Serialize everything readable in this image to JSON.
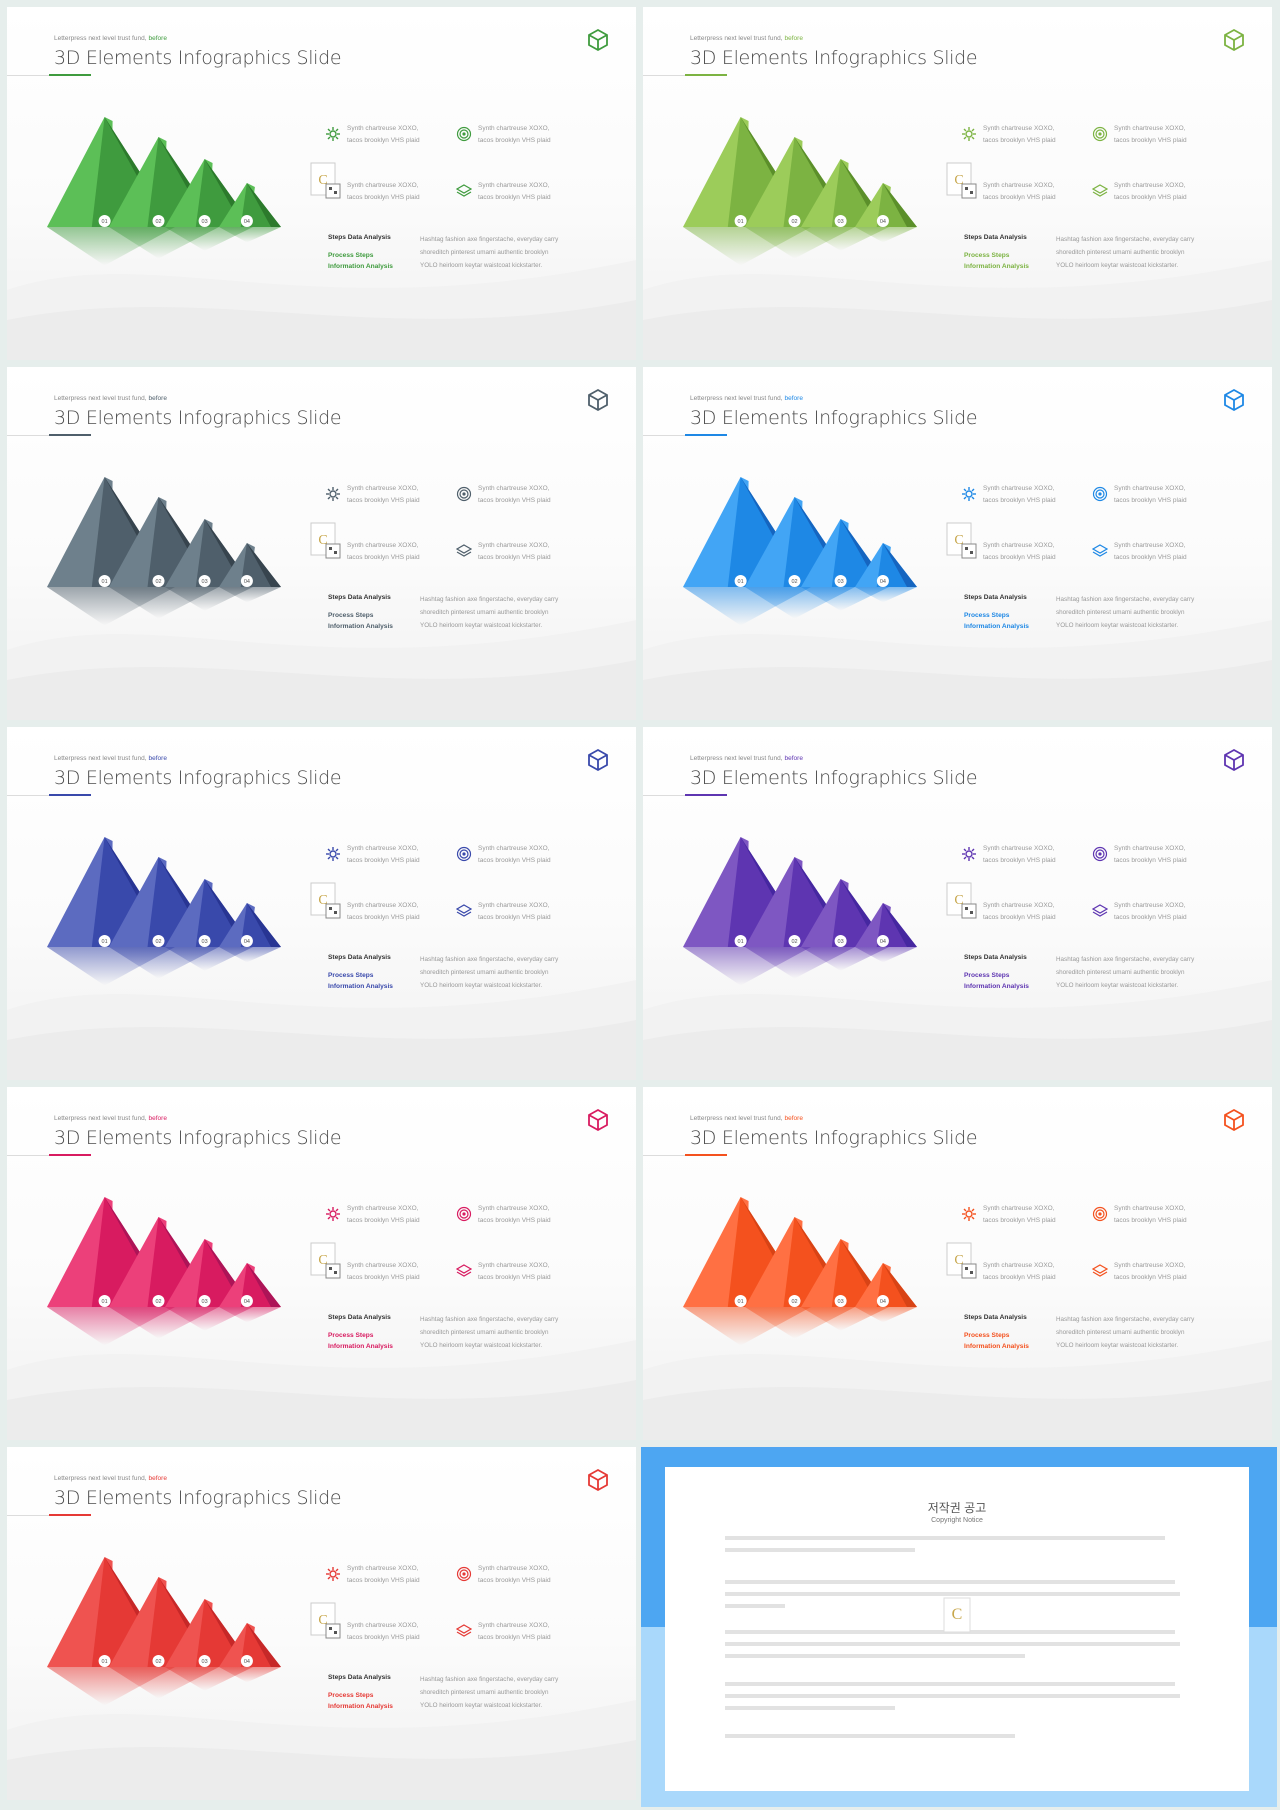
{
  "slides": [
    {
      "kicker": "Letterpress next level trust fund,",
      "kicker_accent": "before",
      "title": "3D Elements Infographics Slide",
      "accent": "#3f9b3e",
      "light": "#5cbf57",
      "dark": "#2c7a2c",
      "cube_icon": "cube-outline-icon",
      "peaks": [
        {
          "num": "01"
        },
        {
          "num": "02"
        },
        {
          "num": "03"
        },
        {
          "num": "04"
        }
      ],
      "items": [
        {
          "icon": "gear-icon",
          "line1": "Synth chartreuse XOXO,",
          "line2": "tacos brooklyn VHS plaid"
        },
        {
          "icon": "target-icon",
          "line1": "Synth chartreuse XOXO,",
          "line2": "tacos brooklyn VHS plaid"
        },
        {
          "icon": "qr-code-icon",
          "line1": "Synth chartreuse XOXO,",
          "line2": "tacos brooklyn VHS plaid"
        },
        {
          "icon": "layers-icon",
          "line1": "Synth chartreuse XOXO,",
          "line2": "tacos brooklyn VHS plaid"
        }
      ],
      "steps": {
        "a": "Steps Data Analysis",
        "b": "Process Steps",
        "c": "Information Analysis"
      },
      "desc": [
        "Hashtag fashion axe fingerstache, everyday carry",
        "shoreditch pinterest umami authentic brooklyn",
        "YOLO heirloom keytar waistcoat kickstarter."
      ]
    },
    {
      "kicker": "Letterpress next level trust fund,",
      "kicker_accent": "before",
      "title": "3D Elements Infographics Slide",
      "accent": "#7cb342",
      "light": "#9ccc5a",
      "dark": "#5b8f2a",
      "cube_icon": "cube-outline-icon",
      "peaks": [
        {
          "num": "01"
        },
        {
          "num": "02"
        },
        {
          "num": "03"
        },
        {
          "num": "04"
        }
      ],
      "items": [
        {
          "icon": "gear-icon",
          "line1": "Synth chartreuse XOXO,",
          "line2": "tacos brooklyn VHS plaid"
        },
        {
          "icon": "target-icon",
          "line1": "Synth chartreuse XOXO,",
          "line2": "tacos brooklyn VHS plaid"
        },
        {
          "icon": "qr-code-icon",
          "line1": "Synth chartreuse XOXO,",
          "line2": "tacos brooklyn VHS plaid"
        },
        {
          "icon": "layers-icon",
          "line1": "Synth chartreuse XOXO,",
          "line2": "tacos brooklyn VHS plaid"
        }
      ],
      "steps": {
        "a": "Steps Data Analysis",
        "b": "Process Steps",
        "c": "Information Analysis"
      },
      "desc": [
        "Hashtag fashion axe fingerstache, everyday carry",
        "shoreditch pinterest umami authentic brooklyn",
        "YOLO heirloom keytar waistcoat kickstarter."
      ]
    },
    {
      "kicker": "Letterpress next level trust fund,",
      "kicker_accent": "before",
      "title": "3D Elements Infographics Slide",
      "accent": "#4f5f6b",
      "light": "#6e808c",
      "dark": "#37444e",
      "cube_icon": "cube-outline-icon",
      "peaks": [
        {
          "num": "01"
        },
        {
          "num": "02"
        },
        {
          "num": "03"
        },
        {
          "num": "04"
        }
      ],
      "items": [
        {
          "icon": "gear-icon",
          "line1": "Synth chartreuse XOXO,",
          "line2": "tacos brooklyn VHS plaid"
        },
        {
          "icon": "target-icon",
          "line1": "Synth chartreuse XOXO,",
          "line2": "tacos brooklyn VHS plaid"
        },
        {
          "icon": "qr-code-icon",
          "line1": "Synth chartreuse XOXO,",
          "line2": "tacos brooklyn VHS plaid"
        },
        {
          "icon": "layers-icon",
          "line1": "Synth chartreuse XOXO,",
          "line2": "tacos brooklyn VHS plaid"
        }
      ],
      "steps": {
        "a": "Steps Data Analysis",
        "b": "Process Steps",
        "c": "Information Analysis"
      },
      "desc": [
        "Hashtag fashion axe fingerstache, everyday carry",
        "shoreditch pinterest umami authentic brooklyn",
        "YOLO heirloom keytar waistcoat kickstarter."
      ]
    },
    {
      "kicker": "Letterpress next level trust fund,",
      "kicker_accent": "before",
      "title": "3D Elements Infographics Slide",
      "accent": "#1e88e5",
      "light": "#42a5f5",
      "dark": "#1565c0",
      "cube_icon": "cube-outline-icon",
      "peaks": [
        {
          "num": "01"
        },
        {
          "num": "02"
        },
        {
          "num": "03"
        },
        {
          "num": "04"
        }
      ],
      "items": [
        {
          "icon": "gear-icon",
          "line1": "Synth chartreuse XOXO,",
          "line2": "tacos brooklyn VHS plaid"
        },
        {
          "icon": "target-icon",
          "line1": "Synth chartreuse XOXO,",
          "line2": "tacos brooklyn VHS plaid"
        },
        {
          "icon": "qr-code-icon",
          "line1": "Synth chartreuse XOXO,",
          "line2": "tacos brooklyn VHS plaid"
        },
        {
          "icon": "layers-icon",
          "line1": "Synth chartreuse XOXO,",
          "line2": "tacos brooklyn VHS plaid"
        }
      ],
      "steps": {
        "a": "Steps Data Analysis",
        "b": "Process Steps",
        "c": "Information Analysis"
      },
      "desc": [
        "Hashtag fashion axe fingerstache, everyday carry",
        "shoreditch pinterest umami authentic brooklyn",
        "YOLO heirloom keytar waistcoat kickstarter."
      ]
    },
    {
      "kicker": "Letterpress next level trust fund,",
      "kicker_accent": "before",
      "title": "3D Elements Infographics Slide",
      "accent": "#3949ab",
      "light": "#5c6bc0",
      "dark": "#283593",
      "cube_icon": "cube-outline-icon",
      "peaks": [
        {
          "num": "01"
        },
        {
          "num": "02"
        },
        {
          "num": "03"
        },
        {
          "num": "04"
        }
      ],
      "items": [
        {
          "icon": "gear-icon",
          "line1": "Synth chartreuse XOXO,",
          "line2": "tacos brooklyn VHS plaid"
        },
        {
          "icon": "target-icon",
          "line1": "Synth chartreuse XOXO,",
          "line2": "tacos brooklyn VHS plaid"
        },
        {
          "icon": "qr-code-icon",
          "line1": "Synth chartreuse XOXO,",
          "line2": "tacos brooklyn VHS plaid"
        },
        {
          "icon": "layers-icon",
          "line1": "Synth chartreuse XOXO,",
          "line2": "tacos brooklyn VHS plaid"
        }
      ],
      "steps": {
        "a": "Steps Data Analysis",
        "b": "Process Steps",
        "c": "Information Analysis"
      },
      "desc": [
        "Hashtag fashion axe fingerstache, everyday carry",
        "shoreditch pinterest umami authentic brooklyn",
        "YOLO heirloom keytar waistcoat kickstarter."
      ]
    },
    {
      "kicker": "Letterpress next level trust fund,",
      "kicker_accent": "before",
      "title": "3D Elements Infographics Slide",
      "accent": "#5e35b1",
      "light": "#7e57c2",
      "dark": "#4527a0",
      "cube_icon": "cube-outline-icon",
      "peaks": [
        {
          "num": "01"
        },
        {
          "num": "02"
        },
        {
          "num": "03"
        },
        {
          "num": "04"
        }
      ],
      "items": [
        {
          "icon": "gear-icon",
          "line1": "Synth chartreuse XOXO,",
          "line2": "tacos brooklyn VHS plaid"
        },
        {
          "icon": "target-icon",
          "line1": "Synth chartreuse XOXO,",
          "line2": "tacos brooklyn VHS plaid"
        },
        {
          "icon": "qr-code-icon",
          "line1": "Synth chartreuse XOXO,",
          "line2": "tacos brooklyn VHS plaid"
        },
        {
          "icon": "layers-icon",
          "line1": "Synth chartreuse XOXO,",
          "line2": "tacos brooklyn VHS plaid"
        }
      ],
      "steps": {
        "a": "Steps Data Analysis",
        "b": "Process Steps",
        "c": "Information Analysis"
      },
      "desc": [
        "Hashtag fashion axe fingerstache, everyday carry",
        "shoreditch pinterest umami authentic brooklyn",
        "YOLO heirloom keytar waistcoat kickstarter."
      ]
    },
    {
      "kicker": "Letterpress next level trust fund,",
      "kicker_accent": "before",
      "title": "3D Elements Infographics Slide",
      "accent": "#d81b60",
      "light": "#ec407a",
      "dark": "#ad1457",
      "cube_icon": "cube-outline-icon",
      "peaks": [
        {
          "num": "01"
        },
        {
          "num": "02"
        },
        {
          "num": "03"
        },
        {
          "num": "04"
        }
      ],
      "items": [
        {
          "icon": "gear-icon",
          "line1": "Synth chartreuse XOXO,",
          "line2": "tacos brooklyn VHS plaid"
        },
        {
          "icon": "target-icon",
          "line1": "Synth chartreuse XOXO,",
          "line2": "tacos brooklyn VHS plaid"
        },
        {
          "icon": "qr-code-icon",
          "line1": "Synth chartreuse XOXO,",
          "line2": "tacos brooklyn VHS plaid"
        },
        {
          "icon": "layers-icon",
          "line1": "Synth chartreuse XOXO,",
          "line2": "tacos brooklyn VHS plaid"
        }
      ],
      "steps": {
        "a": "Steps Data Analysis",
        "b": "Process Steps",
        "c": "Information Analysis"
      },
      "desc": [
        "Hashtag fashion axe fingerstache, everyday carry",
        "shoreditch pinterest umami authentic brooklyn",
        "YOLO heirloom keytar waistcoat kickstarter."
      ]
    },
    {
      "kicker": "Letterpress next level trust fund,",
      "kicker_accent": "before",
      "title": "3D Elements Infographics Slide",
      "accent": "#f4511e",
      "light": "#ff7043",
      "dark": "#d84315",
      "cube_icon": "cube-outline-icon",
      "peaks": [
        {
          "num": "01"
        },
        {
          "num": "02"
        },
        {
          "num": "03"
        },
        {
          "num": "04"
        }
      ],
      "items": [
        {
          "icon": "gear-icon",
          "line1": "Synth chartreuse XOXO,",
          "line2": "tacos brooklyn VHS plaid"
        },
        {
          "icon": "target-icon",
          "line1": "Synth chartreuse XOXO,",
          "line2": "tacos brooklyn VHS plaid"
        },
        {
          "icon": "qr-code-icon",
          "line1": "Synth chartreuse XOXO,",
          "line2": "tacos brooklyn VHS plaid"
        },
        {
          "icon": "layers-icon",
          "line1": "Synth chartreuse XOXO,",
          "line2": "tacos brooklyn VHS plaid"
        }
      ],
      "steps": {
        "a": "Steps Data Analysis",
        "b": "Process Steps",
        "c": "Information Analysis"
      },
      "desc": [
        "Hashtag fashion axe fingerstache, everyday carry",
        "shoreditch pinterest umami authentic brooklyn",
        "YOLO heirloom keytar waistcoat kickstarter."
      ]
    },
    {
      "kicker": "Letterpress next level trust fund,",
      "kicker_accent": "before",
      "title": "3D Elements Infographics Slide",
      "accent": "#e53935",
      "light": "#ef5350",
      "dark": "#c62828",
      "cube_icon": "cube-outline-icon",
      "peaks": [
        {
          "num": "01"
        },
        {
          "num": "02"
        },
        {
          "num": "03"
        },
        {
          "num": "04"
        }
      ],
      "items": [
        {
          "icon": "gear-icon",
          "line1": "Synth chartreuse XOXO,",
          "line2": "tacos brooklyn VHS plaid"
        },
        {
          "icon": "target-icon",
          "line1": "Synth chartreuse XOXO,",
          "line2": "tacos brooklyn VHS plaid"
        },
        {
          "icon": "qr-code-icon",
          "line1": "Synth chartreuse XOXO,",
          "line2": "tacos brooklyn VHS plaid"
        },
        {
          "icon": "layers-icon",
          "line1": "Synth chartreuse XOXO,",
          "line2": "tacos brooklyn VHS plaid"
        }
      ],
      "steps": {
        "a": "Steps Data Analysis",
        "b": "Process Steps",
        "c": "Information Analysis"
      },
      "desc": [
        "Hashtag fashion axe fingerstache, everyday carry",
        "shoreditch pinterest umami authentic brooklyn",
        "YOLO heirloom keytar waistcoat kickstarter."
      ]
    }
  ],
  "notice": {
    "title": "저작권 공고",
    "subtitle": "Copyright Notice",
    "accent": "#4da6f2",
    "light": "#a9d8fb"
  }
}
